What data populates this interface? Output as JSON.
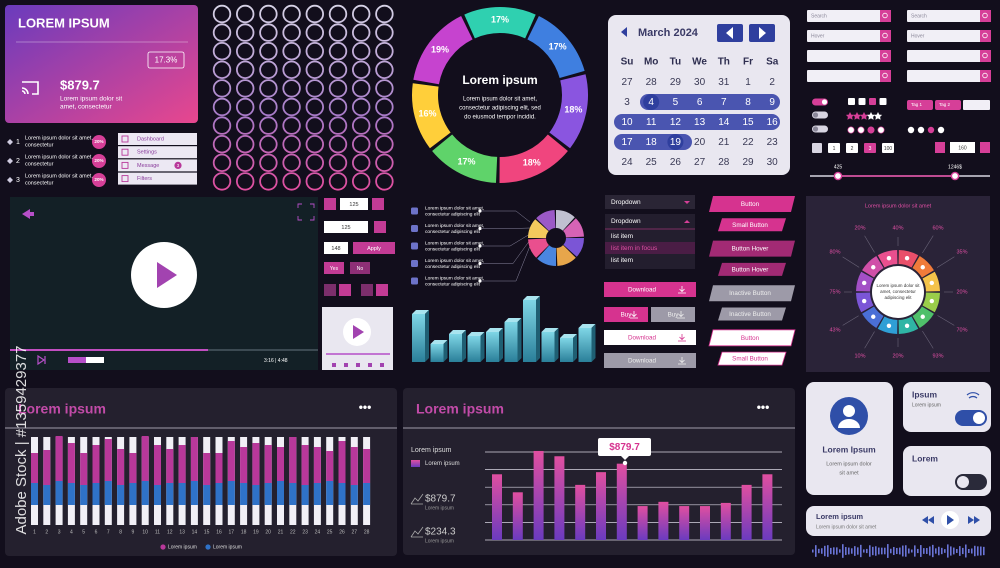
{
  "watermark": "Adobe Stock | #1359429377",
  "summary_card": {
    "title": "LOREM IPSUM",
    "badge": "17.3%",
    "amount": "$879.7",
    "caption": [
      "Lorem ipsum dolor sit",
      "amet, consectetur"
    ]
  },
  "steps": [
    {
      "number": "1",
      "text": [
        "Lorem ipsum dolor sit amet,",
        "consectetur"
      ],
      "badge": "20%"
    },
    {
      "number": "2",
      "text": [
        "Lorem ipsum dolor sit amet,",
        "consectetur"
      ],
      "badge": "20%"
    },
    {
      "number": "3",
      "text": [
        "Lorem ipsum dolor sit amet,",
        "consectetur"
      ],
      "badge": "20%"
    }
  ],
  "menu": [
    {
      "label": "Dashboard"
    },
    {
      "label": "Settings"
    },
    {
      "label": "Message",
      "badge": "3"
    },
    {
      "label": "Filters"
    }
  ],
  "donut": {
    "title": "Lorem ipsum",
    "text": [
      "Lorem ipsum dolor sit amet,",
      "consectetur adipiscing elit, sed",
      "do eiusmod tempor incidid."
    ],
    "segments": [
      {
        "label": "17%",
        "value": 17,
        "color": "#2fd0b0"
      },
      {
        "label": "17%",
        "value": 17,
        "color": "#3f7fe0"
      },
      {
        "label": "18%",
        "value": 18,
        "color": "#8a55e0"
      },
      {
        "label": "18%",
        "value": 18,
        "color": "#f0457e"
      },
      {
        "label": "17%",
        "value": 17,
        "color": "#5fd36a"
      },
      {
        "label": "16%",
        "value": 16,
        "color": "#ffcf3a"
      },
      {
        "label": "19%",
        "value": 19,
        "color": "#c643cf"
      }
    ]
  },
  "calendar": {
    "month": "March 2024",
    "weekdays": [
      "Su",
      "Mo",
      "Tu",
      "We",
      "Th",
      "Fr",
      "Sa"
    ],
    "weeks": [
      [
        "27",
        "28",
        "29",
        "30",
        "31",
        "1",
        "2"
      ],
      [
        "3",
        "4",
        "5",
        "6",
        "7",
        "8",
        "9"
      ],
      [
        "10",
        "11",
        "12",
        "13",
        "14",
        "15",
        "16"
      ],
      [
        "17",
        "18",
        "19",
        "20",
        "21",
        "22",
        "23"
      ],
      [
        "24",
        "25",
        "26",
        "27",
        "28",
        "29",
        "30"
      ]
    ]
  },
  "form": {
    "inputs": [
      "Search",
      "Search",
      "Hover",
      "Hover"
    ],
    "tags": [
      "Tag 1",
      "Tag 2"
    ],
    "pages": [
      "1",
      "2",
      "3",
      "100"
    ],
    "stepper": "160",
    "range": [
      "425",
      "1246$"
    ]
  },
  "video": {
    "time": "3:16 | 4:48"
  },
  "controls": {
    "stepper": "125",
    "input": "125",
    "field": "148",
    "apply": "Apply",
    "yes": "Yes",
    "no": "No"
  },
  "infographic": {
    "items": [
      [
        "Lorem ipsum dolor sit amet,",
        "consectetur adipiscing elit"
      ],
      [
        "Lorem ipsum dolor sit amet,",
        "consectetur adipiscing elit"
      ],
      [
        "Lorem ipsum dolor sit amet,",
        "consectetur adipiscing elit"
      ],
      [
        "Lorem ipsum dolor sit amet,",
        "consectetur adipiscing elit"
      ],
      [
        "Lorem ipsum dolor sit amet,",
        "consectetur adipiscing elit"
      ]
    ]
  },
  "bars_3d": {
    "values": [
      48,
      18,
      28,
      26,
      30,
      40,
      62,
      30,
      24,
      34
    ]
  },
  "dropdown": {
    "closed": "Dropdown",
    "open": "Dropdown",
    "items": [
      "list item",
      "list item in focus",
      "list item"
    ]
  },
  "buttons": [
    "Button",
    "Small Button",
    "Button Hover",
    "Button Hover",
    "Inactive Button",
    "Inactive Button",
    "Button",
    "Small Button"
  ],
  "shop_buttons": [
    "Download",
    "Buy",
    "Buy",
    "Download",
    "Download"
  ],
  "radial": {
    "title": "Lorem ipsum dolor sit amet",
    "labels": [
      "20%",
      "40%",
      "60%",
      "35%",
      "20%",
      "70%",
      "93%",
      "20%",
      "10%",
      "43%",
      "75%",
      "80%"
    ],
    "center": [
      "Lorem ipsum dolor sit",
      "amet, consectetur",
      "adipiscing elit"
    ]
  },
  "stacked_chart": {
    "title": "Lorem ipsum",
    "menu": "•••",
    "categories": [
      "1",
      "2",
      "3",
      "4",
      "5",
      "6",
      "7",
      "8",
      "9",
      "10",
      "11",
      "12",
      "13",
      "14",
      "15",
      "16",
      "17",
      "18",
      "19",
      "20",
      "21",
      "22",
      "23",
      "24",
      "25",
      "26",
      "27",
      "28"
    ],
    "series": [
      {
        "name": "Lorem ipsum",
        "color": "#b8389a",
        "values": [
          30,
          35,
          45,
          40,
          32,
          38,
          42,
          36,
          30,
          45,
          40,
          34,
          38,
          44,
          32,
          30,
          40,
          36,
          42,
          38,
          34,
          46,
          40,
          36,
          30,
          42,
          38,
          34
        ]
      },
      {
        "name": "Lorem ipsum",
        "color": "#2f72c8",
        "values": [
          22,
          20,
          24,
          22,
          20,
          22,
          24,
          20,
          22,
          24,
          20,
          22,
          22,
          24,
          20,
          22,
          24,
          22,
          20,
          22,
          24,
          22,
          20,
          22,
          24,
          22,
          20,
          22
        ]
      }
    ]
  },
  "bar_chart": {
    "title": "Lorem ipsum",
    "menu": "•••",
    "label": "Lorem ipsum",
    "legend": "Lorem ipsum",
    "stats": [
      {
        "value": "$879.7",
        "label": "Lorem ipsum"
      },
      {
        "value": "$234.3",
        "label": "Lorem ipsum"
      }
    ],
    "tooltip": "$879.7",
    "values": [
      62,
      45,
      84,
      79,
      52,
      64,
      72,
      32,
      36,
      32,
      32,
      35,
      52,
      62
    ]
  },
  "profile": {
    "name": "Lorem Ipsum",
    "text": [
      "Lorem ipsum dolor",
      "sit amet"
    ]
  },
  "toggles": [
    {
      "title": "Ipsum",
      "text": "Lorem ipsum"
    },
    {
      "title": "Lorem"
    }
  ],
  "player": {
    "title": "Lorem ipsum",
    "text": "Lorem ipsum dolor sit amet"
  }
}
